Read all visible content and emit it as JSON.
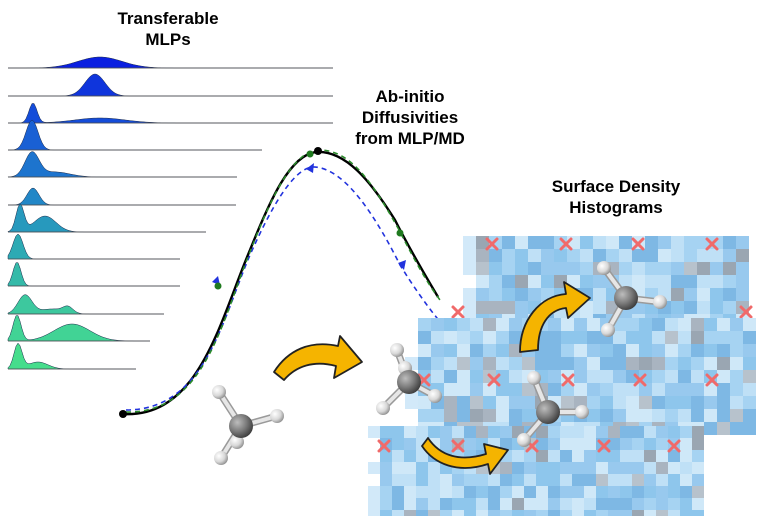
{
  "labels": {
    "mlps": [
      "Transferable",
      "MLPs"
    ],
    "diffusivities": [
      "Ab-initio",
      "Diffusivities",
      "from MLP/MD"
    ],
    "histograms": [
      "Surface Density",
      "Histograms"
    ]
  },
  "colors": {
    "ridge_gradient": [
      "#0a1fe0",
      "#1550d8",
      "#1f7ccc",
      "#2aa4b8",
      "#3cc6a0",
      "#46dd8c"
    ],
    "curve": "#000000",
    "path_forward": "#2233dd",
    "path_backward": "#2a8a2a",
    "grid_blue": "#9fd0f0",
    "grid_grey": "#a9b4c0",
    "cross": "#f06a6a",
    "arrow_fill": "#f5b400",
    "arrow_stroke": "#222222",
    "carbon": "#7a7a7a",
    "hydrogen": "#d8d8d8"
  },
  "icons": {
    "ridgeline_plot": "stacked-distribution-ridges",
    "energy_barrier": "barrier-curve",
    "density_grid": "pixel-heatmap",
    "forbidden_site": "red-cross-icon",
    "molecule": "methane-molecule-icon",
    "transition_arrow": "curved-arrow-icon"
  }
}
